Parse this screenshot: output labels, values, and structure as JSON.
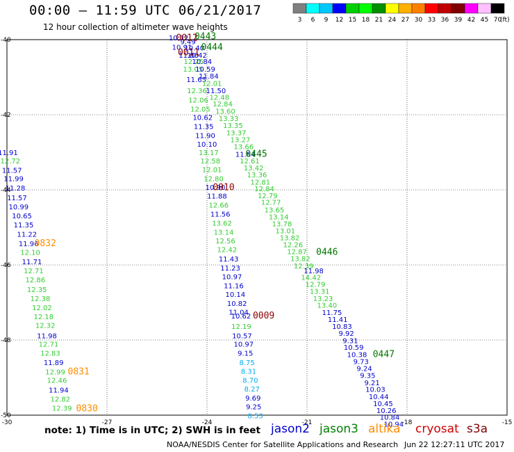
{
  "header": {
    "title": "00:00 – 11:59 UTC 06/21/2017",
    "subtitle": "12 hour collection of altimeter wave heights"
  },
  "colorbar": {
    "unit": "(ft)",
    "ticks": [
      "3",
      "6",
      "9",
      "12",
      "15",
      "18",
      "21",
      "24",
      "27",
      "30",
      "33",
      "36",
      "39",
      "42",
      "45",
      "70"
    ],
    "colors": [
      "#808080",
      "#00ffff",
      "#00c8ff",
      "#0000ff",
      "#00d000",
      "#00ff00",
      "#009000",
      "#ffff00",
      "#ffb000",
      "#ff8000",
      "#ff0000",
      "#c00000",
      "#800000",
      "#ff00ff",
      "#ffc0ff",
      "#000000"
    ]
  },
  "chart_data": {
    "type": "scatter",
    "xlim": [
      -30,
      -15
    ],
    "ylim": [
      -50,
      -40
    ],
    "x_ticks": [
      -30,
      -27,
      -24,
      -21,
      -18,
      -15
    ],
    "y_ticks": [
      -40,
      -42,
      -44,
      -46,
      -48,
      -50
    ],
    "x_tick_labels": [
      "-30",
      "-27",
      "-24",
      "-21",
      "-18",
      "-15"
    ],
    "y_tick_labels": [
      "-40",
      "-42",
      "-44",
      "-46",
      "-48",
      "-50"
    ],
    "grid": true,
    "series": [
      {
        "name": "jason2",
        "color": "#0000cc"
      },
      {
        "name": "jason3",
        "color": "#008000"
      },
      {
        "name": "altika",
        "color": "#ff8c00"
      },
      {
        "name": "cryosat",
        "color": "#cc0000"
      },
      {
        "name": "s3a",
        "color": "#800000"
      }
    ],
    "points": [
      {
        "x": -24.85,
        "y": -40.02,
        "v": "10.12",
        "c": "#0000cc"
      },
      {
        "x": -24.75,
        "y": -40.27,
        "v": "10.91",
        "c": "#0000cc"
      },
      {
        "x": -24.57,
        "y": -40.12,
        "v": "9.49",
        "c": "#0000cc"
      },
      {
        "x": -24.38,
        "y": -40.29,
        "v": "10.40",
        "c": "#0000cc"
      },
      {
        "x": -24.55,
        "y": -40.48,
        "v": "11.80",
        "c": "#0000cc"
      },
      {
        "x": -24.3,
        "y": -40.48,
        "v": "10.42",
        "c": "#0000cc"
      },
      {
        "x": -24.4,
        "y": -40.65,
        "v": "12.25",
        "c": "#33cc33"
      },
      {
        "x": -24.15,
        "y": -40.65,
        "v": "10.84",
        "c": "#0000cc"
      },
      {
        "x": -24.42,
        "y": -40.85,
        "v": "13.05",
        "c": "#33cc33"
      },
      {
        "x": -24.05,
        "y": -40.85,
        "v": "10.59",
        "c": "#0000cc"
      },
      {
        "x": -23.95,
        "y": -41.04,
        "v": "11.84",
        "c": "#0000cc"
      },
      {
        "x": -24.32,
        "y": -41.13,
        "v": "11.65",
        "c": "#0000cc"
      },
      {
        "x": -23.85,
        "y": -41.23,
        "v": "12.01",
        "c": "#33cc33"
      },
      {
        "x": -24.3,
        "y": -41.43,
        "v": "12.36",
        "c": "#33cc33"
      },
      {
        "x": -23.73,
        "y": -41.43,
        "v": "11.50",
        "c": "#0000cc"
      },
      {
        "x": -23.63,
        "y": -41.6,
        "v": "12.48",
        "c": "#33cc33"
      },
      {
        "x": -24.26,
        "y": -41.68,
        "v": "12.06",
        "c": "#33cc33"
      },
      {
        "x": -23.53,
        "y": -41.78,
        "v": "12.84",
        "c": "#33cc33"
      },
      {
        "x": -24.2,
        "y": -41.92,
        "v": "12.05",
        "c": "#33cc33"
      },
      {
        "x": -23.45,
        "y": -41.97,
        "v": "13.60",
        "c": "#33cc33"
      },
      {
        "x": -24.13,
        "y": -42.14,
        "v": "10.62",
        "c": "#0000cc"
      },
      {
        "x": -23.35,
        "y": -42.17,
        "v": "13.33",
        "c": "#33cc33"
      },
      {
        "x": -23.22,
        "y": -42.35,
        "v": "13.35",
        "c": "#33cc33"
      },
      {
        "x": -24.1,
        "y": -42.38,
        "v": "11.35",
        "c": "#0000cc"
      },
      {
        "x": -23.12,
        "y": -42.55,
        "v": "13.37",
        "c": "#33cc33"
      },
      {
        "x": -24.05,
        "y": -42.62,
        "v": "11.90",
        "c": "#0000cc"
      },
      {
        "x": -23.0,
        "y": -42.73,
        "v": "13.27",
        "c": "#33cc33"
      },
      {
        "x": -24.0,
        "y": -42.85,
        "v": "10.10",
        "c": "#0000cc"
      },
      {
        "x": -22.9,
        "y": -42.92,
        "v": "13.66",
        "c": "#33cc33"
      },
      {
        "x": -23.95,
        "y": -43.07,
        "v": "13.17",
        "c": "#33cc33"
      },
      {
        "x": -22.85,
        "y": -43.12,
        "v": "11.84",
        "c": "#0000cc"
      },
      {
        "x": -23.9,
        "y": -43.3,
        "v": "12.58",
        "c": "#33cc33"
      },
      {
        "x": -22.72,
        "y": -43.3,
        "v": "12.61",
        "c": "#33cc33"
      },
      {
        "x": -22.6,
        "y": -43.48,
        "v": "13.42",
        "c": "#33cc33"
      },
      {
        "x": -23.85,
        "y": -43.53,
        "v": "12.01",
        "c": "#33cc33"
      },
      {
        "x": -22.5,
        "y": -43.67,
        "v": "13.36",
        "c": "#33cc33"
      },
      {
        "x": -23.8,
        "y": -43.77,
        "v": "12.80",
        "c": "#33cc33"
      },
      {
        "x": -22.4,
        "y": -43.86,
        "v": "12.81",
        "c": "#33cc33"
      },
      {
        "x": -22.28,
        "y": -44.04,
        "v": "12.84",
        "c": "#33cc33"
      },
      {
        "x": -23.75,
        "y": -44.0,
        "v": "10.90",
        "c": "#0000cc"
      },
      {
        "x": -22.18,
        "y": -44.22,
        "v": "12.79",
        "c": "#33cc33"
      },
      {
        "x": -23.7,
        "y": -44.23,
        "v": "11.88",
        "c": "#0000cc"
      },
      {
        "x": -22.08,
        "y": -44.4,
        "v": "12.77",
        "c": "#33cc33"
      },
      {
        "x": -23.65,
        "y": -44.47,
        "v": "12.66",
        "c": "#33cc33"
      },
      {
        "x": -21.98,
        "y": -44.6,
        "v": "13.65",
        "c": "#33cc33"
      },
      {
        "x": -23.6,
        "y": -44.71,
        "v": "11.56",
        "c": "#0000cc"
      },
      {
        "x": -21.85,
        "y": -44.79,
        "v": "13.14",
        "c": "#33cc33"
      },
      {
        "x": -23.55,
        "y": -44.95,
        "v": "13.62",
        "c": "#33cc33"
      },
      {
        "x": -21.75,
        "y": -44.97,
        "v": "13.78",
        "c": "#33cc33"
      },
      {
        "x": -21.65,
        "y": -45.16,
        "v": "13.01",
        "c": "#33cc33"
      },
      {
        "x": -23.5,
        "y": -45.19,
        "v": "13.14",
        "c": "#33cc33"
      },
      {
        "x": -21.52,
        "y": -45.34,
        "v": "13.82",
        "c": "#33cc33"
      },
      {
        "x": -23.45,
        "y": -45.43,
        "v": "12.56",
        "c": "#33cc33"
      },
      {
        "x": -21.42,
        "y": -45.53,
        "v": "12.26",
        "c": "#33cc33"
      },
      {
        "x": -23.4,
        "y": -45.66,
        "v": "12.42",
        "c": "#33cc33"
      },
      {
        "x": -21.3,
        "y": -45.71,
        "v": "12.87",
        "c": "#33cc33"
      },
      {
        "x": -21.2,
        "y": -45.9,
        "v": "13.82",
        "c": "#33cc33"
      },
      {
        "x": -23.35,
        "y": -45.91,
        "v": "11.43",
        "c": "#0000cc"
      },
      {
        "x": -21.1,
        "y": -46.09,
        "v": "12.39",
        "c": "#33cc33"
      },
      {
        "x": -23.3,
        "y": -46.15,
        "v": "11.23",
        "c": "#0000cc"
      },
      {
        "x": -20.8,
        "y": -46.22,
        "v": "11.98",
        "c": "#0000cc"
      },
      {
        "x": -20.88,
        "y": -46.4,
        "v": "14.42",
        "c": "#33cc33"
      },
      {
        "x": -23.25,
        "y": -46.38,
        "v": "10.97",
        "c": "#0000cc"
      },
      {
        "x": -20.75,
        "y": -46.58,
        "v": "12.79",
        "c": "#33cc33"
      },
      {
        "x": -23.2,
        "y": -46.62,
        "v": "11.16",
        "c": "#0000cc"
      },
      {
        "x": -20.62,
        "y": -46.77,
        "v": "13.31",
        "c": "#33cc33"
      },
      {
        "x": -23.15,
        "y": -46.85,
        "v": "10.14",
        "c": "#0000cc"
      },
      {
        "x": -20.52,
        "y": -46.96,
        "v": "13.23",
        "c": "#33cc33"
      },
      {
        "x": -23.1,
        "y": -47.09,
        "v": "10.82",
        "c": "#0000cc"
      },
      {
        "x": -20.4,
        "y": -47.14,
        "v": "13.40",
        "c": "#33cc33"
      },
      {
        "x": -23.05,
        "y": -47.32,
        "v": "11.04",
        "c": "#0000cc"
      },
      {
        "x": -20.25,
        "y": -47.33,
        "v": "11.75",
        "c": "#0000cc"
      },
      {
        "x": -22.98,
        "y": -47.43,
        "v": "10.62",
        "c": "#0000cc"
      },
      {
        "x": -20.08,
        "y": -47.52,
        "v": "11.41",
        "c": "#0000cc"
      },
      {
        "x": -22.97,
        "y": -47.7,
        "v": "12.19",
        "c": "#33cc33"
      },
      {
        "x": -19.95,
        "y": -47.7,
        "v": "10.83",
        "c": "#0000cc"
      },
      {
        "x": -19.82,
        "y": -47.89,
        "v": "9.92",
        "c": "#0000cc"
      },
      {
        "x": -22.95,
        "y": -47.95,
        "v": "10.57",
        "c": "#0000cc"
      },
      {
        "x": -19.7,
        "y": -48.08,
        "v": "9.31",
        "c": "#0000cc"
      },
      {
        "x": -22.9,
        "y": -48.18,
        "v": "10.97",
        "c": "#0000cc"
      },
      {
        "x": -19.6,
        "y": -48.26,
        "v": "10.59",
        "c": "#0000cc"
      },
      {
        "x": -22.85,
        "y": -48.42,
        "v": "9.15",
        "c": "#0000cc"
      },
      {
        "x": -19.5,
        "y": -48.45,
        "v": "10.38",
        "c": "#0000cc"
      },
      {
        "x": -19.38,
        "y": -48.64,
        "v": "9.73",
        "c": "#0000cc"
      },
      {
        "x": -22.8,
        "y": -48.67,
        "v": "8.75",
        "c": "#00aaee"
      },
      {
        "x": -19.28,
        "y": -48.82,
        "v": "9.24",
        "c": "#0000cc"
      },
      {
        "x": -22.75,
        "y": -48.9,
        "v": "8.31",
        "c": "#00aaee"
      },
      {
        "x": -19.18,
        "y": -49.01,
        "v": "9.35",
        "c": "#0000cc"
      },
      {
        "x": -22.7,
        "y": -49.14,
        "v": "8.70",
        "c": "#00aaee"
      },
      {
        "x": -19.05,
        "y": -49.2,
        "v": "9.21",
        "c": "#0000cc"
      },
      {
        "x": -22.65,
        "y": -49.37,
        "v": "8.27",
        "c": "#00aaee"
      },
      {
        "x": -18.95,
        "y": -49.38,
        "v": "10.03",
        "c": "#0000cc"
      },
      {
        "x": -18.85,
        "y": -49.57,
        "v": "10.44",
        "c": "#0000cc"
      },
      {
        "x": -22.62,
        "y": -49.61,
        "v": "9.69",
        "c": "#0000cc"
      },
      {
        "x": -18.72,
        "y": -49.76,
        "v": "10.45",
        "c": "#0000cc"
      },
      {
        "x": -22.6,
        "y": -49.84,
        "v": "9.25",
        "c": "#0000cc"
      },
      {
        "x": -18.62,
        "y": -49.94,
        "v": "10.26",
        "c": "#0000cc"
      },
      {
        "x": -18.52,
        "y": -50.12,
        "v": "10.84",
        "c": "#0000cc"
      },
      {
        "x": -22.55,
        "y": -50.08,
        "v": "8.53",
        "c": "#00aaee"
      },
      {
        "x": -18.4,
        "y": -50.31,
        "v": "10.94",
        "c": "#0000cc"
      },
      {
        "x": -29.97,
        "y": -43.07,
        "v": "11.91",
        "c": "#0000cc"
      },
      {
        "x": -29.9,
        "y": -43.3,
        "v": "12.72",
        "c": "#33cc33"
      },
      {
        "x": -29.85,
        "y": -43.55,
        "v": "11.57",
        "c": "#0000cc"
      },
      {
        "x": -29.8,
        "y": -43.77,
        "v": "11.99",
        "c": "#0000cc"
      },
      {
        "x": -29.75,
        "y": -44.02,
        "v": "11.28",
        "c": "#0000cc"
      },
      {
        "x": -29.7,
        "y": -44.28,
        "v": "11.57",
        "c": "#0000cc"
      },
      {
        "x": -29.65,
        "y": -44.52,
        "v": "10.99",
        "c": "#0000cc"
      },
      {
        "x": -29.55,
        "y": -44.76,
        "v": "10.65",
        "c": "#0000cc"
      },
      {
        "x": -29.5,
        "y": -45.0,
        "v": "11.35",
        "c": "#0000cc"
      },
      {
        "x": -29.4,
        "y": -45.25,
        "v": "11.22",
        "c": "#0000cc"
      },
      {
        "x": -29.35,
        "y": -45.5,
        "v": "11.96",
        "c": "#0000cc"
      },
      {
        "x": -29.3,
        "y": -45.73,
        "v": "12.10",
        "c": "#33cc33"
      },
      {
        "x": -29.25,
        "y": -45.98,
        "v": "11.71",
        "c": "#0000cc"
      },
      {
        "x": -29.2,
        "y": -46.22,
        "v": "12.71",
        "c": "#33cc33"
      },
      {
        "x": -29.15,
        "y": -46.46,
        "v": "12.86",
        "c": "#33cc33"
      },
      {
        "x": -29.1,
        "y": -46.72,
        "v": "12.35",
        "c": "#33cc33"
      },
      {
        "x": -29.0,
        "y": -46.96,
        "v": "12.38",
        "c": "#33cc33"
      },
      {
        "x": -28.95,
        "y": -47.2,
        "v": "12.02",
        "c": "#33cc33"
      },
      {
        "x": -28.9,
        "y": -47.44,
        "v": "12.18",
        "c": "#33cc33"
      },
      {
        "x": -28.85,
        "y": -47.68,
        "v": "12.32",
        "c": "#33cc33"
      },
      {
        "x": -28.8,
        "y": -47.95,
        "v": "11.98",
        "c": "#0000cc"
      },
      {
        "x": -28.75,
        "y": -48.18,
        "v": "12.71",
        "c": "#33cc33"
      },
      {
        "x": -28.7,
        "y": -48.42,
        "v": "12.83",
        "c": "#33cc33"
      },
      {
        "x": -28.6,
        "y": -48.67,
        "v": "11.89",
        "c": "#0000cc"
      },
      {
        "x": -28.55,
        "y": -48.92,
        "v": "12.99",
        "c": "#33cc33"
      },
      {
        "x": -28.5,
        "y": -49.14,
        "v": "12.46",
        "c": "#33cc33"
      },
      {
        "x": -28.45,
        "y": -49.4,
        "v": "11.94",
        "c": "#0000cc"
      },
      {
        "x": -28.4,
        "y": -49.64,
        "v": "12.82",
        "c": "#33cc33"
      },
      {
        "x": -28.35,
        "y": -49.88,
        "v": "12.39",
        "c": "#33cc33"
      }
    ],
    "time_labels": [
      {
        "x": -24.6,
        "y": -40.03,
        "t": "0012",
        "c": "#8b0000"
      },
      {
        "x": -24.05,
        "y": -39.99,
        "t": "0443",
        "c": "#007700"
      },
      {
        "x": -23.85,
        "y": -40.28,
        "t": "0444",
        "c": "#007700"
      },
      {
        "x": -24.55,
        "y": -40.42,
        "t": "0011",
        "c": "#8b0000"
      },
      {
        "x": -22.52,
        "y": -43.12,
        "t": "0445",
        "c": "#007700"
      },
      {
        "x": -23.5,
        "y": -44.01,
        "t": "0010",
        "c": "#8b0000"
      },
      {
        "x": -20.4,
        "y": -45.73,
        "t": "0446",
        "c": "#007700"
      },
      {
        "x": -28.85,
        "y": -45.5,
        "t": "0832",
        "c": "#ff8c00"
      },
      {
        "x": -22.3,
        "y": -47.43,
        "t": "0009",
        "c": "#8b0000"
      },
      {
        "x": -18.7,
        "y": -48.45,
        "t": "0447",
        "c": "#007700"
      },
      {
        "x": -27.85,
        "y": -48.92,
        "t": "0831",
        "c": "#ff8c00"
      },
      {
        "x": -27.6,
        "y": -49.9,
        "t": "0830",
        "c": "#ff8c00"
      }
    ]
  },
  "note": "note: 1) Time is in UTC; 2) SWH is in feet",
  "legend": [
    {
      "label": "jason2",
      "color": "#0000cc"
    },
    {
      "label": "jason3",
      "color": "#008000"
    },
    {
      "label": "altika",
      "color": "#ff8c00"
    },
    {
      "label": "cryosat",
      "color": "#cc0000"
    },
    {
      "label": "s3a",
      "color": "#800000"
    }
  ],
  "footer": {
    "left": "NOAA/NESDIS Center for Satellite Applications and Research",
    "right": "Jun 22 12:27:11 UTC 2017"
  }
}
